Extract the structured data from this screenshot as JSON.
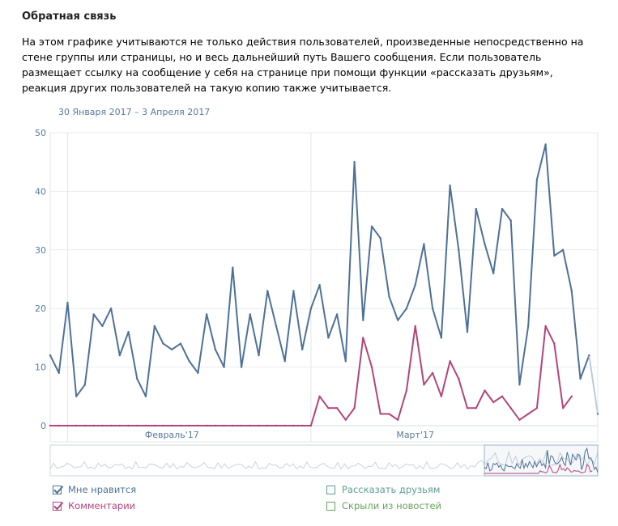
{
  "header": {
    "title": "Обратная связь",
    "description": "На этом графике учитываются не только действия пользователей, произведенные непосредственно на стене группы или страницы, но и весь дальнейший путь Вашего сообщения. Если пользователь размещает ссылку на сообщение у себя на странице при помощи функции «рассказать друзьям», реакция других пользователей на такую копию также учитывается.",
    "period": "30 Января 2017 – 3 Апреля 2017"
  },
  "colors": {
    "likes": "#4e7198",
    "comments": "#b1457c",
    "shares": "#5e9c92",
    "hidden": "#66a35e",
    "grid": "#e8ebee",
    "axis_text": "#5b7a9b"
  },
  "legend": [
    {
      "label": "Мне нравится",
      "checked": true,
      "color": "#4e7198"
    },
    {
      "label": "Комментарии",
      "checked": true,
      "color": "#b1457c"
    },
    {
      "label": "Рассказать друзьям",
      "checked": false,
      "color": "#5e9c92"
    },
    {
      "label": "Скрыли из новостей",
      "checked": false,
      "color": "#66a35e"
    }
  ],
  "chart_data": {
    "type": "line",
    "title": "",
    "xlabel": "",
    "ylabel": "",
    "ylim": [
      0,
      50
    ],
    "yticks": [
      0,
      10,
      20,
      30,
      40,
      50
    ],
    "x_start": "2017-01-30",
    "x_end": "2017-04-03",
    "x_tick_labels": [
      {
        "date": "2017-02-13",
        "label": "Февраль'17"
      },
      {
        "date": "2017-03-13",
        "label": "Март'17"
      }
    ],
    "grid": true,
    "series": [
      {
        "name": "Мне нравится",
        "x": [
          "2017-01-30",
          "2017-01-31",
          "2017-02-01",
          "2017-02-02",
          "2017-02-03",
          "2017-02-04",
          "2017-02-05",
          "2017-02-06",
          "2017-02-07",
          "2017-02-08",
          "2017-02-09",
          "2017-02-10",
          "2017-02-11",
          "2017-02-12",
          "2017-02-13",
          "2017-02-14",
          "2017-02-15",
          "2017-02-16",
          "2017-02-17",
          "2017-02-18",
          "2017-02-19",
          "2017-02-20",
          "2017-02-21",
          "2017-02-22",
          "2017-02-23",
          "2017-02-24",
          "2017-02-25",
          "2017-02-26",
          "2017-02-27",
          "2017-02-28",
          "2017-03-01",
          "2017-03-02",
          "2017-03-03",
          "2017-03-04",
          "2017-03-05",
          "2017-03-06",
          "2017-03-07",
          "2017-03-08",
          "2017-03-09",
          "2017-03-10",
          "2017-03-11",
          "2017-03-12",
          "2017-03-13",
          "2017-03-14",
          "2017-03-15",
          "2017-03-16",
          "2017-03-17",
          "2017-03-18",
          "2017-03-19",
          "2017-03-20",
          "2017-03-21",
          "2017-03-22",
          "2017-03-23",
          "2017-03-24",
          "2017-03-25",
          "2017-03-26",
          "2017-03-27",
          "2017-03-28",
          "2017-03-29",
          "2017-03-30",
          "2017-03-31",
          "2017-04-01",
          "2017-04-02",
          "2017-04-03"
        ],
        "values": [
          12,
          9,
          21,
          5,
          7,
          19,
          17,
          20,
          12,
          16,
          8,
          5,
          17,
          14,
          13,
          14,
          11,
          9,
          19,
          13,
          10,
          27,
          10,
          19,
          12,
          23,
          17,
          11,
          23,
          13,
          20,
          24,
          15,
          19,
          11,
          45,
          18,
          34,
          32,
          22,
          18,
          20,
          24,
          31,
          20,
          15,
          41,
          30,
          16,
          37,
          31,
          26,
          37,
          35,
          7,
          17,
          42,
          48,
          29,
          30,
          23,
          8,
          12,
          2
        ]
      },
      {
        "name": "Комментарии",
        "x": [
          "2017-01-30",
          "2017-01-31",
          "2017-02-01",
          "2017-02-02",
          "2017-02-03",
          "2017-02-04",
          "2017-02-05",
          "2017-02-06",
          "2017-02-07",
          "2017-02-08",
          "2017-02-09",
          "2017-02-10",
          "2017-02-11",
          "2017-02-12",
          "2017-02-13",
          "2017-02-14",
          "2017-02-15",
          "2017-02-16",
          "2017-02-17",
          "2017-02-18",
          "2017-02-19",
          "2017-02-20",
          "2017-02-21",
          "2017-02-22",
          "2017-02-23",
          "2017-02-24",
          "2017-02-25",
          "2017-02-26",
          "2017-02-27",
          "2017-02-28",
          "2017-03-01",
          "2017-03-02",
          "2017-03-03",
          "2017-03-04",
          "2017-03-05",
          "2017-03-06",
          "2017-03-07",
          "2017-03-08",
          "2017-03-09",
          "2017-03-10",
          "2017-03-11",
          "2017-03-12",
          "2017-03-13",
          "2017-03-14",
          "2017-03-15",
          "2017-03-16",
          "2017-03-17",
          "2017-03-18",
          "2017-03-19",
          "2017-03-20",
          "2017-03-21",
          "2017-03-22",
          "2017-03-23",
          "2017-03-24",
          "2017-03-25",
          "2017-03-26",
          "2017-03-27",
          "2017-03-28",
          "2017-03-29",
          "2017-03-30",
          "2017-03-31"
        ],
        "values": [
          0,
          0,
          0,
          0,
          0,
          0,
          0,
          0,
          0,
          0,
          0,
          0,
          0,
          0,
          0,
          0,
          0,
          0,
          0,
          0,
          0,
          0,
          0,
          0,
          0,
          0,
          0,
          0,
          0,
          0,
          0,
          5,
          3,
          3,
          1,
          3,
          15,
          10,
          2,
          2,
          1,
          6,
          17,
          7,
          9,
          5,
          11,
          8,
          3,
          3,
          6,
          4,
          5,
          3,
          1,
          2,
          3,
          17,
          14,
          3,
          5
        ]
      }
    ]
  }
}
